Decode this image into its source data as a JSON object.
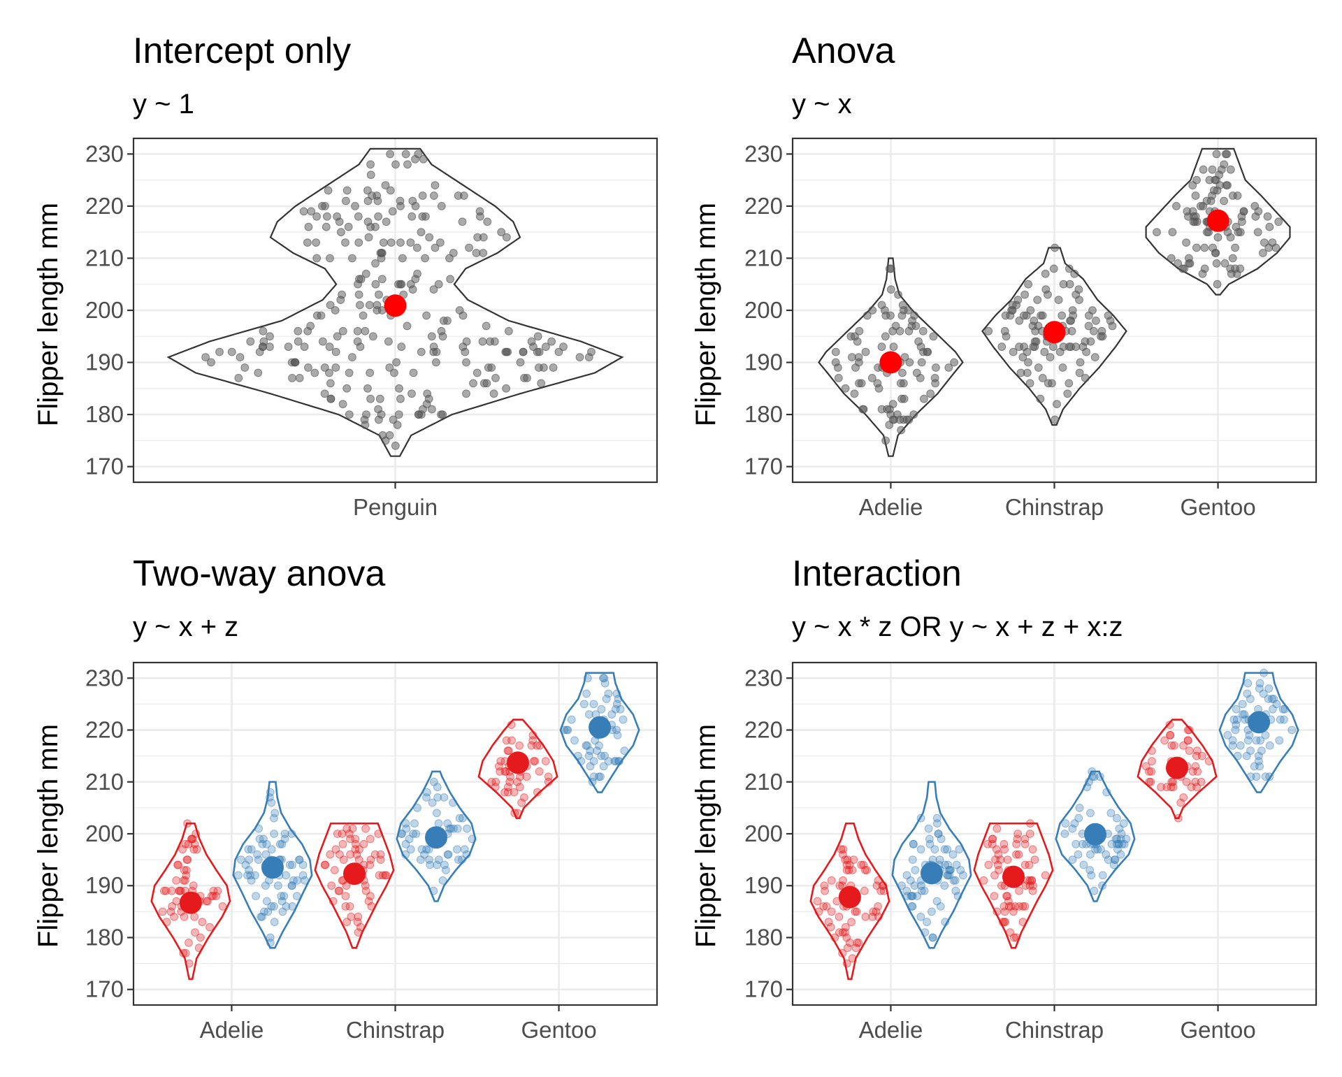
{
  "colors": {
    "female": "#E41A1C",
    "male": "#377EB8",
    "points": "#555555",
    "mean": "#FF0000",
    "outline": "#333333"
  },
  "chart_data": [
    {
      "type": "violin",
      "title": "Intercept only",
      "subtitle": "y ~ 1",
      "xlabel": "",
      "ylabel": "Flipper length mm",
      "ylim": [
        170,
        230
      ],
      "yticks": [
        170,
        180,
        190,
        200,
        210,
        220,
        230
      ],
      "grid": true,
      "categories": [
        "Penguin"
      ],
      "groups": [
        {
          "category": 0,
          "offset": 0,
          "color": "#333333",
          "mean": 200.9,
          "range": [
            172,
            231
          ],
          "density": [
            [
              172,
              0.02
            ],
            [
              176,
              0.07
            ],
            [
              180,
              0.25
            ],
            [
              184,
              0.55
            ],
            [
              188,
              0.88
            ],
            [
              191,
              1.0
            ],
            [
              194,
              0.82
            ],
            [
              198,
              0.5
            ],
            [
              202,
              0.32
            ],
            [
              205,
              0.26
            ],
            [
              208,
              0.31
            ],
            [
              211,
              0.45
            ],
            [
              214,
              0.55
            ],
            [
              217,
              0.52
            ],
            [
              220,
              0.44
            ],
            [
              224,
              0.3
            ],
            [
              228,
              0.16
            ],
            [
              231,
              0.11
            ]
          ]
        }
      ]
    },
    {
      "type": "violin",
      "title": "Anova",
      "subtitle": "y ~ x",
      "xlabel": "",
      "ylabel": "Flipper length mm",
      "ylim": [
        170,
        230
      ],
      "yticks": [
        170,
        180,
        190,
        200,
        210,
        220,
        230
      ],
      "grid": true,
      "categories": [
        "Adelie",
        "Chinstrap",
        "Gentoo"
      ],
      "groups": [
        {
          "category": 0,
          "offset": 0,
          "color": "#333333",
          "mean": 190.0,
          "range": [
            172,
            210
          ],
          "density": [
            [
              172,
              0.03
            ],
            [
              176,
              0.1
            ],
            [
              180,
              0.35
            ],
            [
              184,
              0.65
            ],
            [
              188,
              0.88
            ],
            [
              190,
              1.0
            ],
            [
              192,
              0.9
            ],
            [
              196,
              0.6
            ],
            [
              200,
              0.3
            ],
            [
              203,
              0.12
            ],
            [
              206,
              0.06
            ],
            [
              210,
              0.03
            ]
          ]
        },
        {
          "category": 1,
          "offset": 0,
          "color": "#333333",
          "mean": 195.8,
          "range": [
            178,
            212
          ],
          "density": [
            [
              178,
              0.03
            ],
            [
              181,
              0.12
            ],
            [
              185,
              0.35
            ],
            [
              189,
              0.62
            ],
            [
              193,
              0.85
            ],
            [
              196,
              1.0
            ],
            [
              199,
              0.82
            ],
            [
              202,
              0.6
            ],
            [
              206,
              0.4
            ],
            [
              209,
              0.15
            ],
            [
              212,
              0.08
            ]
          ]
        },
        {
          "category": 2,
          "offset": 0,
          "color": "#333333",
          "mean": 217.2,
          "range": [
            203,
            231
          ],
          "density": [
            [
              203,
              0.03
            ],
            [
              205,
              0.15
            ],
            [
              208,
              0.55
            ],
            [
              211,
              0.82
            ],
            [
              214,
              1.0
            ],
            [
              216,
              1.0
            ],
            [
              219,
              0.8
            ],
            [
              222,
              0.6
            ],
            [
              225,
              0.38
            ],
            [
              228,
              0.3
            ],
            [
              231,
              0.22
            ]
          ]
        }
      ]
    },
    {
      "type": "violin",
      "title": "Two-way anova",
      "subtitle": "y ~ x + z",
      "xlabel": "",
      "ylabel": "Flipper length mm",
      "ylim": [
        170,
        230
      ],
      "yticks": [
        170,
        180,
        190,
        200,
        210,
        220,
        230
      ],
      "grid": true,
      "categories": [
        "Adelie",
        "Chinstrap",
        "Gentoo"
      ],
      "groups": [
        {
          "category": 0,
          "offset": -0.25,
          "color": "#E41A1C",
          "mean": 186.7,
          "range": [
            172,
            202
          ],
          "density": [
            [
              172,
              0.04
            ],
            [
              176,
              0.15
            ],
            [
              180,
              0.45
            ],
            [
              184,
              0.8
            ],
            [
              187,
              1.0
            ],
            [
              190,
              0.92
            ],
            [
              193,
              0.65
            ],
            [
              196,
              0.4
            ],
            [
              199,
              0.22
            ],
            [
              202,
              0.1
            ]
          ]
        },
        {
          "category": 0,
          "offset": 0.25,
          "color": "#377EB8",
          "mean": 193.5,
          "range": [
            178,
            210
          ],
          "density": [
            [
              178,
              0.06
            ],
            [
              181,
              0.25
            ],
            [
              185,
              0.55
            ],
            [
              189,
              0.8
            ],
            [
              192,
              1.0
            ],
            [
              195,
              0.95
            ],
            [
              198,
              0.75
            ],
            [
              201,
              0.45
            ],
            [
              204,
              0.22
            ],
            [
              207,
              0.12
            ],
            [
              210,
              0.08
            ]
          ]
        },
        {
          "category": 1,
          "offset": -0.25,
          "color": "#E41A1C",
          "mean": 192.3,
          "range": [
            178,
            202
          ],
          "density": [
            [
              178,
              0.05
            ],
            [
              181,
              0.2
            ],
            [
              184,
              0.4
            ],
            [
              187,
              0.6
            ],
            [
              190,
              0.82
            ],
            [
              193,
              1.0
            ],
            [
              196,
              0.9
            ],
            [
              199,
              0.75
            ],
            [
              202,
              0.6
            ]
          ]
        },
        {
          "category": 1,
          "offset": 0.25,
          "color": "#377EB8",
          "mean": 199.3,
          "range": [
            187,
            212
          ],
          "density": [
            [
              187,
              0.04
            ],
            [
              190,
              0.2
            ],
            [
              193,
              0.5
            ],
            [
              196,
              0.85
            ],
            [
              199,
              1.0
            ],
            [
              202,
              0.9
            ],
            [
              205,
              0.6
            ],
            [
              208,
              0.35
            ],
            [
              211,
              0.15
            ],
            [
              212,
              0.1
            ]
          ]
        },
        {
          "category": 2,
          "offset": -0.25,
          "color": "#E41A1C",
          "mean": 213.7,
          "range": [
            203,
            222
          ],
          "density": [
            [
              203,
              0.04
            ],
            [
              205,
              0.15
            ],
            [
              208,
              0.55
            ],
            [
              211,
              1.0
            ],
            [
              214,
              0.9
            ],
            [
              217,
              0.65
            ],
            [
              220,
              0.35
            ],
            [
              222,
              0.12
            ]
          ]
        },
        {
          "category": 2,
          "offset": 0.25,
          "color": "#377EB8",
          "mean": 220.5,
          "range": [
            208,
            231
          ],
          "density": [
            [
              208,
              0.05
            ],
            [
              211,
              0.3
            ],
            [
              214,
              0.55
            ],
            [
              217,
              0.85
            ],
            [
              220,
              1.0
            ],
            [
              223,
              0.85
            ],
            [
              226,
              0.55
            ],
            [
              229,
              0.4
            ],
            [
              231,
              0.35
            ]
          ]
        }
      ]
    },
    {
      "type": "violin",
      "title": "Interaction",
      "subtitle": "y ~ x * z OR y ~ x + z + x:z",
      "xlabel": "",
      "ylabel": "Flipper length mm",
      "ylim": [
        170,
        230
      ],
      "yticks": [
        170,
        180,
        190,
        200,
        210,
        220,
        230
      ],
      "grid": true,
      "categories": [
        "Adelie",
        "Chinstrap",
        "Gentoo"
      ],
      "groups": [
        {
          "category": 0,
          "offset": -0.25,
          "color": "#E41A1C",
          "mean": 187.8,
          "range": [
            172,
            202
          ],
          "density": [
            [
              172,
              0.04
            ],
            [
              176,
              0.15
            ],
            [
              180,
              0.45
            ],
            [
              184,
              0.8
            ],
            [
              187,
              1.0
            ],
            [
              190,
              0.92
            ],
            [
              193,
              0.65
            ],
            [
              196,
              0.4
            ],
            [
              199,
              0.22
            ],
            [
              202,
              0.1
            ]
          ]
        },
        {
          "category": 0,
          "offset": 0.25,
          "color": "#377EB8",
          "mean": 192.4,
          "range": [
            178,
            210
          ],
          "density": [
            [
              178,
              0.06
            ],
            [
              181,
              0.25
            ],
            [
              185,
              0.55
            ],
            [
              189,
              0.8
            ],
            [
              192,
              1.0
            ],
            [
              195,
              0.95
            ],
            [
              198,
              0.75
            ],
            [
              201,
              0.45
            ],
            [
              204,
              0.22
            ],
            [
              207,
              0.12
            ],
            [
              210,
              0.08
            ]
          ]
        },
        {
          "category": 1,
          "offset": -0.25,
          "color": "#E41A1C",
          "mean": 191.7,
          "range": [
            178,
            202
          ],
          "density": [
            [
              178,
              0.05
            ],
            [
              181,
              0.2
            ],
            [
              184,
              0.4
            ],
            [
              187,
              0.6
            ],
            [
              190,
              0.82
            ],
            [
              193,
              1.0
            ],
            [
              196,
              0.9
            ],
            [
              199,
              0.75
            ],
            [
              202,
              0.6
            ]
          ]
        },
        {
          "category": 1,
          "offset": 0.25,
          "color": "#377EB8",
          "mean": 199.9,
          "range": [
            187,
            212
          ],
          "density": [
            [
              187,
              0.04
            ],
            [
              190,
              0.2
            ],
            [
              193,
              0.5
            ],
            [
              196,
              0.85
            ],
            [
              199,
              1.0
            ],
            [
              202,
              0.9
            ],
            [
              205,
              0.6
            ],
            [
              208,
              0.35
            ],
            [
              211,
              0.15
            ],
            [
              212,
              0.1
            ]
          ]
        },
        {
          "category": 2,
          "offset": -0.25,
          "color": "#E41A1C",
          "mean": 212.7,
          "range": [
            203,
            222
          ],
          "density": [
            [
              203,
              0.04
            ],
            [
              205,
              0.15
            ],
            [
              208,
              0.55
            ],
            [
              211,
              1.0
            ],
            [
              214,
              0.9
            ],
            [
              217,
              0.65
            ],
            [
              220,
              0.35
            ],
            [
              222,
              0.12
            ]
          ]
        },
        {
          "category": 2,
          "offset": 0.25,
          "color": "#377EB8",
          "mean": 221.5,
          "range": [
            208,
            231
          ],
          "density": [
            [
              208,
              0.05
            ],
            [
              211,
              0.3
            ],
            [
              214,
              0.55
            ],
            [
              217,
              0.85
            ],
            [
              220,
              1.0
            ],
            [
              223,
              0.85
            ],
            [
              226,
              0.55
            ],
            [
              229,
              0.4
            ],
            [
              231,
              0.35
            ]
          ]
        }
      ]
    }
  ]
}
